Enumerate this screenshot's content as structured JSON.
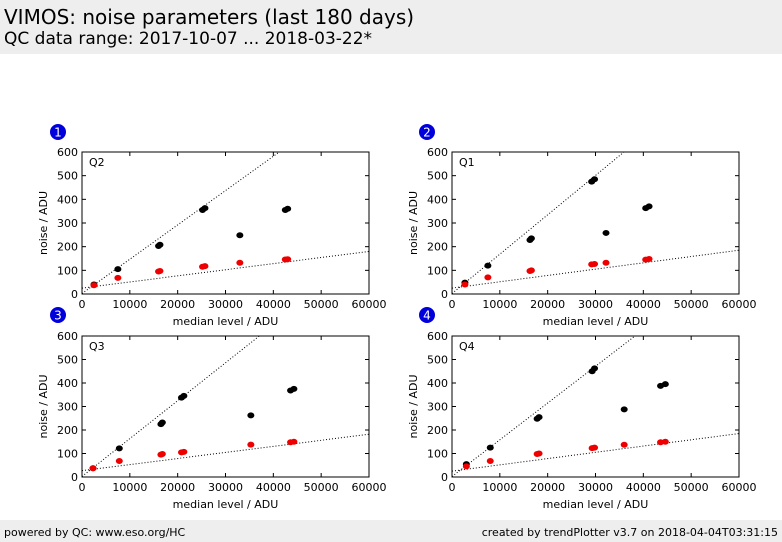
{
  "header": {
    "title": "VIMOS: noise parameters (last 180 days)",
    "subtitle": "QC data range: 2017-10-07 ... 2018-03-22*"
  },
  "footer": {
    "left": "powered by QC: www.eso.org/HC",
    "right": "created by trendPlotter v3.7 on 2018-04-04T03:31:15"
  },
  "colors": {
    "black_series": "#000000",
    "red_series": "#ee0000",
    "badge": "#0000dd",
    "header_bg": "#eeeeee"
  },
  "chart_data": [
    {
      "type": "scatter",
      "badge": "1",
      "label": "Q2",
      "xlabel": "median level / ADU",
      "ylabel": "noise / ADU",
      "xlim": [
        0,
        60000
      ],
      "ylim": [
        0,
        600
      ],
      "xticks": [
        "0",
        "10000",
        "20000",
        "30000",
        "40000",
        "50000",
        "60000"
      ],
      "yticks": [
        "0",
        "100",
        "200",
        "300",
        "400",
        "500",
        "600"
      ],
      "series": [
        {
          "color": "black",
          "points": [
            [
              2500,
              40
            ],
            [
              7500,
              105
            ],
            [
              16000,
              203
            ],
            [
              16300,
              208
            ],
            [
              25200,
              355
            ],
            [
              25700,
              363
            ],
            [
              33000,
              248
            ],
            [
              42500,
              355
            ],
            [
              43000,
              360
            ]
          ]
        },
        {
          "color": "red",
          "points": [
            [
              2500,
              37
            ],
            [
              7500,
              68
            ],
            [
              16000,
              95
            ],
            [
              16300,
              97
            ],
            [
              25200,
              115
            ],
            [
              25700,
              118
            ],
            [
              33000,
              132
            ],
            [
              42500,
              146
            ],
            [
              43000,
              147
            ]
          ]
        }
      ],
      "fits": [
        {
          "x": [
            0,
            60000
          ],
          "y": [
            2,
            872
          ]
        },
        {
          "x": [
            0,
            60000
          ],
          "y": [
            25,
            180
          ]
        }
      ]
    },
    {
      "type": "scatter",
      "badge": "2",
      "label": "Q1",
      "xlabel": "median level / ADU",
      "ylabel": "noise / ADU",
      "xlim": [
        0,
        60000
      ],
      "ylim": [
        0,
        600
      ],
      "xticks": [
        "0",
        "10000",
        "20000",
        "30000",
        "40000",
        "50000",
        "60000"
      ],
      "yticks": [
        "0",
        "100",
        "200",
        "300",
        "400",
        "500",
        "600"
      ],
      "series": [
        {
          "color": "black",
          "points": [
            [
              2700,
              48
            ],
            [
              7500,
              120
            ],
            [
              16300,
              228
            ],
            [
              16600,
              235
            ],
            [
              29200,
              475
            ],
            [
              29800,
              485
            ],
            [
              32200,
              258
            ],
            [
              40500,
              363
            ],
            [
              41200,
              370
            ]
          ]
        },
        {
          "color": "red",
          "points": [
            [
              2700,
              40
            ],
            [
              7500,
              70
            ],
            [
              16300,
              97
            ],
            [
              16600,
              100
            ],
            [
              29200,
              125
            ],
            [
              29800,
              127
            ],
            [
              32200,
              132
            ],
            [
              40500,
              145
            ],
            [
              41200,
              148
            ]
          ]
        }
      ],
      "fits": [
        {
          "x": [
            0,
            60000
          ],
          "y": [
            2,
            1000
          ]
        },
        {
          "x": [
            0,
            60000
          ],
          "y": [
            25,
            185
          ]
        }
      ]
    },
    {
      "type": "scatter",
      "badge": "3",
      "label": "Q3",
      "xlabel": "median level / ADU",
      "ylabel": "noise / ADU",
      "xlim": [
        0,
        60000
      ],
      "ylim": [
        0,
        600
      ],
      "xticks": [
        "0",
        "10000",
        "20000",
        "30000",
        "40000",
        "50000",
        "60000"
      ],
      "yticks": [
        "0",
        "100",
        "200",
        "300",
        "400",
        "500",
        "600"
      ],
      "series": [
        {
          "color": "black",
          "points": [
            [
              2300,
              37
            ],
            [
              7800,
              122
            ],
            [
              16500,
              225
            ],
            [
              16800,
              232
            ],
            [
              20800,
              338
            ],
            [
              21300,
              345
            ],
            [
              35300,
              262
            ],
            [
              43600,
              368
            ],
            [
              44300,
              375
            ]
          ]
        },
        {
          "color": "red",
          "points": [
            [
              2300,
              37
            ],
            [
              7800,
              68
            ],
            [
              16500,
              95
            ],
            [
              16800,
              98
            ],
            [
              20800,
              105
            ],
            [
              21300,
              107
            ],
            [
              35300,
              138
            ],
            [
              43600,
              148
            ],
            [
              44300,
              150
            ]
          ]
        }
      ],
      "fits": [
        {
          "x": [
            0,
            60000
          ],
          "y": [
            2,
            970
          ]
        },
        {
          "x": [
            0,
            60000
          ],
          "y": [
            27,
            182
          ]
        }
      ]
    },
    {
      "type": "scatter",
      "badge": "4",
      "label": "Q4",
      "xlabel": "median level / ADU",
      "ylabel": "noise / ADU",
      "xlim": [
        0,
        60000
      ],
      "ylim": [
        0,
        600
      ],
      "xticks": [
        "0",
        "10000",
        "20000",
        "30000",
        "40000",
        "50000",
        "60000"
      ],
      "yticks": [
        "0",
        "100",
        "200",
        "300",
        "400",
        "500",
        "600"
      ],
      "series": [
        {
          "color": "black",
          "points": [
            [
              3000,
              55
            ],
            [
              8000,
              125
            ],
            [
              17800,
              248
            ],
            [
              18200,
              255
            ],
            [
              29300,
              450
            ],
            [
              29800,
              462
            ],
            [
              36000,
              288
            ],
            [
              43600,
              388
            ],
            [
              44600,
              395
            ]
          ]
        },
        {
          "color": "red",
          "points": [
            [
              3000,
              45
            ],
            [
              8000,
              68
            ],
            [
              17800,
              98
            ],
            [
              18200,
              100
            ],
            [
              29300,
              123
            ],
            [
              29800,
              125
            ],
            [
              36000,
              137
            ],
            [
              43600,
              148
            ],
            [
              44600,
              150
            ]
          ]
        }
      ],
      "fits": [
        {
          "x": [
            0,
            60000
          ],
          "y": [
            2,
            940
          ]
        },
        {
          "x": [
            0,
            60000
          ],
          "y": [
            25,
            185
          ]
        }
      ]
    }
  ]
}
